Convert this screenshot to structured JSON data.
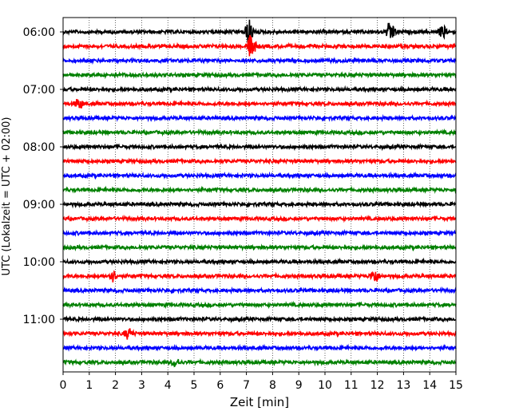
{
  "chart_data": {
    "type": "line",
    "description_kind": "helicorder seismogram",
    "xlabel": "Zeit  [min]",
    "ylabel": "UTC (Lokalzeit = UTC + 02:00)",
    "xlim": [
      0,
      15
    ],
    "x_ticks": [
      "0",
      "1",
      "2",
      "3",
      "4",
      "5",
      "6",
      "7",
      "8",
      "9",
      "10",
      "11",
      "12",
      "13",
      "14",
      "15"
    ],
    "grid": "vertical dotted at each minute",
    "trace_interval_min": 15,
    "y_ticks": [
      {
        "label": "06:00",
        "trace_index": 0
      },
      {
        "label": "07:00",
        "trace_index": 4
      },
      {
        "label": "08:00",
        "trace_index": 8
      },
      {
        "label": "09:00",
        "trace_index": 12
      },
      {
        "label": "10:00",
        "trace_index": 16
      },
      {
        "label": "11:00",
        "trace_index": 20
      }
    ],
    "color_cycle": [
      "#000000",
      "#ff0000",
      "#0000ff",
      "#008000"
    ],
    "trace_count": 24,
    "events": [
      {
        "trace_index": 0,
        "minute": 7.1,
        "amplitude": 1.0
      },
      {
        "trace_index": 0,
        "minute": 12.5,
        "amplitude": 0.9
      },
      {
        "trace_index": 0,
        "minute": 14.5,
        "amplitude": 0.45
      },
      {
        "trace_index": 1,
        "minute": 7.2,
        "amplitude": 1.2
      },
      {
        "trace_index": 5,
        "minute": 0.6,
        "amplitude": 0.45
      },
      {
        "trace_index": 17,
        "minute": 1.9,
        "amplitude": 0.45
      },
      {
        "trace_index": 17,
        "minute": 11.9,
        "amplitude": 0.55
      },
      {
        "trace_index": 21,
        "minute": 2.5,
        "amplitude": 0.45
      },
      {
        "trace_index": 23,
        "minute": 4.3,
        "amplitude": 0.35
      }
    ]
  }
}
